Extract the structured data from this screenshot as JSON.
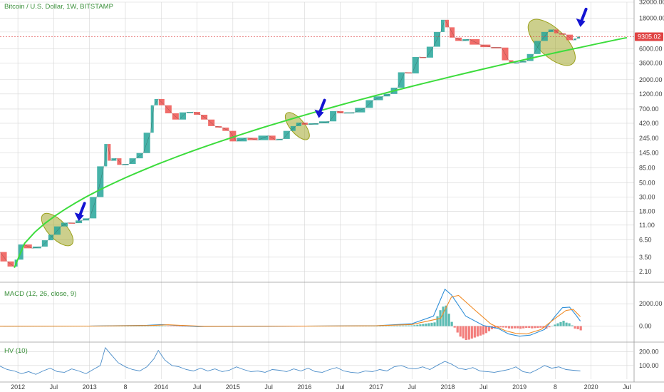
{
  "header": {
    "title": "Bitcoin / U.S. Dollar, 1W, BITSTAMP"
  },
  "price_tag": {
    "value": "9305.02",
    "color": "#e04343"
  },
  "colors": {
    "up": "#26a69a",
    "down": "#ef5350",
    "trendline": "#3cdc3c",
    "highlight": "#9aa01a",
    "arrow": "#1414d2",
    "grid": "#d6d6d6",
    "macd_line": "#2f8fd8",
    "signal_line": "#f08a24",
    "hv_line": "#4a8cc8",
    "title": "#3a8f3a"
  },
  "chart_data": [
    {
      "type": "line",
      "panel": "price",
      "scale": "log",
      "ylim": [
        1.5,
        32000
      ],
      "y_ticks": [
        "32000.00",
        "18000.00",
        "11000.00",
        "6000.00",
        "3600.00",
        "2000.00",
        "1200.00",
        "700.00",
        "420.00",
        "245.00",
        "145.00",
        "85.00",
        "50.00",
        "30.00",
        "18.00",
        "11.00",
        "6.50",
        "3.50",
        "2.10"
      ],
      "x_ticks": [
        "2012",
        "Jul",
        "2013",
        "8",
        "2014",
        "Jul",
        "2015",
        "Jul",
        "2016",
        "Jul",
        "2017",
        "Jul",
        "2018",
        "Jul",
        "2019",
        "8",
        "2020",
        "Jul"
      ],
      "grid": true,
      "series": [
        {
          "kind": "candlestick-path",
          "x": [
            2011.75,
            2011.85,
            2011.95,
            2012.0,
            2012.08,
            2012.2,
            2012.33,
            2012.42,
            2012.5,
            2012.6,
            2012.7,
            2012.8,
            2012.9,
            2013.0,
            2013.1,
            2013.2,
            2013.25,
            2013.3,
            2013.38,
            2013.45,
            2013.55,
            2013.65,
            2013.75,
            2013.85,
            2013.9,
            2013.96,
            2014.05,
            2014.15,
            2014.25,
            2014.35,
            2014.45,
            2014.55,
            2014.65,
            2014.75,
            2014.85,
            2014.95,
            2015.05,
            2015.2,
            2015.35,
            2015.5,
            2015.6,
            2015.7,
            2015.8,
            2015.88,
            2015.96,
            2016.05,
            2016.2,
            2016.35,
            2016.45,
            2016.55,
            2016.7,
            2016.85,
            2016.96,
            2017.1,
            2017.2,
            2017.3,
            2017.4,
            2017.5,
            2017.6,
            2017.7,
            2017.8,
            2017.9,
            2017.96,
            2018.02,
            2018.1,
            2018.2,
            2018.3,
            2018.45,
            2018.6,
            2018.75,
            2018.85,
            2018.92,
            2019.0,
            2019.1,
            2019.2,
            2019.3,
            2019.4,
            2019.48,
            2019.55,
            2019.65,
            2019.75,
            2019.8,
            2019.85
          ],
          "values": [
            4.2,
            3.0,
            2.5,
            3.2,
            5.5,
            4.8,
            5.1,
            6.4,
            7.8,
            10.5,
            12.0,
            11.8,
            13.0,
            14.0,
            30.0,
            90.0,
            200.0,
            110.0,
            120.0,
            95.0,
            98.0,
            120.0,
            145.0,
            300.0,
            800.0,
            1000.0,
            800.0,
            600.0,
            480.0,
            620.0,
            630.0,
            570.0,
            480.0,
            380.0,
            360.0,
            320.0,
            220.0,
            250.0,
            230.0,
            270.0,
            230.0,
            240.0,
            320.0,
            380.0,
            430.0,
            400.0,
            420.0,
            450.0,
            650.0,
            600.0,
            620.0,
            730.0,
            960.0,
            1100.0,
            1200.0,
            1500.0,
            2600.0,
            2500.0,
            4500.0,
            4400.0,
            6500.0,
            11000.0,
            17000.0,
            13000.0,
            9000.0,
            8000.0,
            8500.0,
            7000.0,
            6400.0,
            6300.0,
            4000.0,
            3600.0,
            3700.0,
            3900.0,
            5000.0,
            8000.0,
            11000.0,
            12000.0,
            10500.0,
            10000.0,
            8200.0,
            8700.0,
            9305.0
          ]
        },
        {
          "kind": "trendline",
          "x": [
            2011.95,
            2020.5
          ],
          "values": [
            2.4,
            9000.0
          ]
        }
      ],
      "annotations": [
        {
          "kind": "ellipse",
          "x_range": [
            2012.35,
            2012.75
          ],
          "y_range": [
            5.5,
            16.0
          ]
        },
        {
          "kind": "ellipse",
          "x_range": [
            2015.75,
            2016.05
          ],
          "y_range": [
            240.0,
            600.0
          ]
        },
        {
          "kind": "ellipse",
          "x_range": [
            2019.15,
            2019.75
          ],
          "y_range": [
            3600.0,
            16000.0
          ]
        },
        {
          "kind": "arrow",
          "x": 2012.85,
          "y": 13.0
        },
        {
          "kind": "arrow",
          "x": 2016.2,
          "y": 520.0
        },
        {
          "kind": "arrow",
          "x": 2019.85,
          "y": 13500.0
        }
      ]
    },
    {
      "type": "line",
      "panel": "macd",
      "title": "MACD (12, 26, close, 9)",
      "ylim": [
        -1300,
        3800
      ],
      "y_ticks": [
        "2000.00",
        "0.00"
      ],
      "grid": true,
      "series": [
        {
          "name": "MACD",
          "x": [
            2011.75,
            2013.0,
            2013.8,
            2014.0,
            2014.5,
            2016.0,
            2017.0,
            2017.5,
            2017.8,
            2017.96,
            2018.05,
            2018.25,
            2018.5,
            2018.7,
            2018.85,
            2019.0,
            2019.15,
            2019.35,
            2019.5,
            2019.6,
            2019.7,
            2019.8,
            2019.85
          ],
          "values": [
            0,
            5,
            80,
            140,
            -40,
            10,
            40,
            220,
            900,
            3300,
            2800,
            900,
            50,
            -200,
            -700,
            -900,
            -800,
            -300,
            900,
            1650,
            1700,
            900,
            450
          ]
        },
        {
          "name": "Signal",
          "x": [
            2011.75,
            2013.0,
            2013.85,
            2014.1,
            2014.6,
            2016.0,
            2017.0,
            2017.5,
            2017.9,
            2018.05,
            2018.15,
            2018.35,
            2018.6,
            2018.8,
            2018.95,
            2019.1,
            2019.3,
            2019.5,
            2019.65,
            2019.75,
            2019.85
          ],
          "values": [
            0,
            5,
            60,
            120,
            -20,
            10,
            30,
            150,
            700,
            2600,
            2750,
            1600,
            200,
            -400,
            -650,
            -700,
            -300,
            700,
            1400,
            1500,
            850
          ]
        }
      ]
    },
    {
      "type": "line",
      "panel": "hv",
      "title": "HV (10)",
      "ylim": [
        0,
        260
      ],
      "y_ticks": [
        "200.00",
        "100.00"
      ],
      "grid": true,
      "series": [
        {
          "name": "HV",
          "x": [
            2011.75,
            2011.85,
            2011.95,
            2012.05,
            2012.15,
            2012.25,
            2012.35,
            2012.45,
            2012.55,
            2012.65,
            2012.75,
            2012.85,
            2012.95,
            2013.05,
            2013.15,
            2013.22,
            2013.3,
            2013.4,
            2013.5,
            2013.6,
            2013.7,
            2013.8,
            2013.9,
            2013.96,
            2014.05,
            2014.15,
            2014.25,
            2014.35,
            2014.45,
            2014.55,
            2014.65,
            2014.75,
            2014.85,
            2014.95,
            2015.05,
            2015.15,
            2015.25,
            2015.35,
            2015.45,
            2015.55,
            2015.65,
            2015.75,
            2015.85,
            2015.95,
            2016.05,
            2016.15,
            2016.25,
            2016.35,
            2016.45,
            2016.55,
            2016.65,
            2016.75,
            2016.85,
            2016.95,
            2017.05,
            2017.15,
            2017.25,
            2017.35,
            2017.45,
            2017.55,
            2017.65,
            2017.75,
            2017.85,
            2017.96,
            2018.05,
            2018.15,
            2018.25,
            2018.35,
            2018.45,
            2018.55,
            2018.65,
            2018.75,
            2018.85,
            2018.95,
            2019.05,
            2019.15,
            2019.25,
            2019.35,
            2019.45,
            2019.55,
            2019.65,
            2019.75,
            2019.85
          ],
          "values": [
            95,
            70,
            60,
            40,
            55,
            35,
            60,
            80,
            55,
            50,
            75,
            60,
            40,
            70,
            100,
            230,
            180,
            120,
            90,
            70,
            60,
            90,
            150,
            210,
            140,
            100,
            90,
            70,
            60,
            80,
            60,
            75,
            55,
            65,
            90,
            70,
            55,
            60,
            50,
            70,
            65,
            55,
            75,
            60,
            80,
            55,
            50,
            70,
            85,
            60,
            50,
            45,
            60,
            55,
            70,
            60,
            90,
            100,
            80,
            75,
            90,
            70,
            100,
            130,
            110,
            80,
            70,
            85,
            60,
            55,
            50,
            60,
            70,
            90,
            55,
            45,
            70,
            100,
            80,
            90,
            70,
            65,
            60
          ]
        }
      ]
    }
  ]
}
